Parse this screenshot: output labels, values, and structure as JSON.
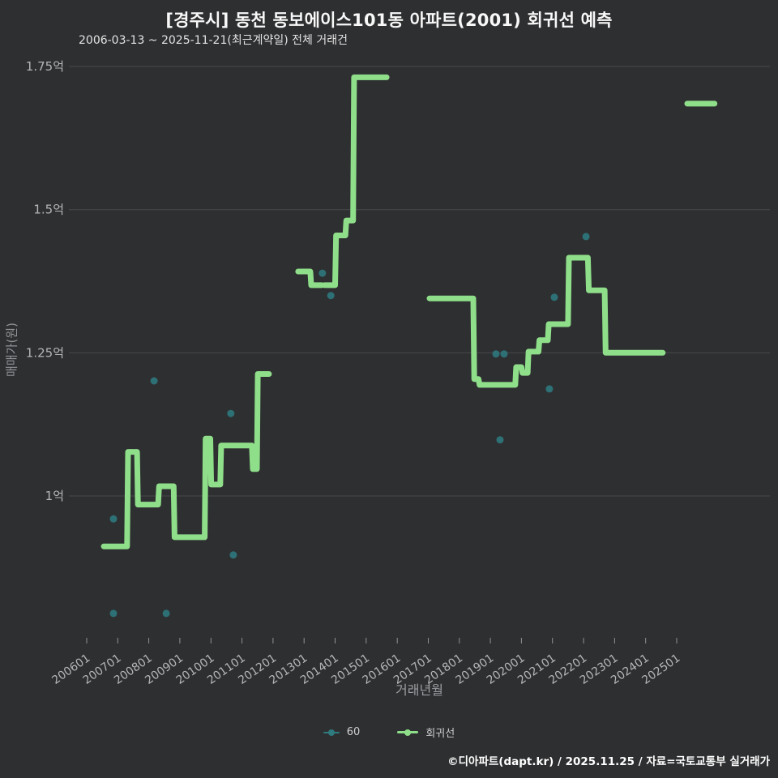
{
  "header": {
    "title": "[경주시] 동천 동보에이스101동 아파트(2001) 회귀선 예측",
    "subtitle": "2006-03-13 ~ 2025-11-21(최근계약일) 전체 거래건"
  },
  "axes": {
    "y_label": "매매가(원)",
    "x_label": "거래년월"
  },
  "legend": {
    "items": [
      {
        "label": "60",
        "color": "#2e7a7e",
        "type": "scatter"
      },
      {
        "label": "회귀선",
        "color": "#8fdf8a",
        "type": "line"
      }
    ]
  },
  "footer": {
    "credit": "©디아파트(dapt.kr) / 2025.11.25 / 자료=국토교통부 실거래가"
  },
  "chart_data": {
    "type": "line",
    "title": "[경주시] 동천 동보에이스101동 아파트(2001) 회귀선 예측",
    "xlabel": "거래년월",
    "ylabel": "매매가(원)",
    "unit": "억원",
    "grid": true,
    "grid_color": "#47494b",
    "tick_color": "#b4b6b8",
    "background": "#2e2f31",
    "x_ticks": [
      "200601",
      "200701",
      "200801",
      "200901",
      "201001",
      "201101",
      "201201",
      "201301",
      "201401",
      "201501",
      "201601",
      "201701",
      "201801",
      "201901",
      "202001",
      "202101",
      "202201",
      "202301",
      "202401",
      "202501"
    ],
    "y_ticks": [
      {
        "label": "1.75억",
        "value": 1.75
      },
      {
        "label": "1.5억",
        "value": 1.5
      },
      {
        "label": "1.25억",
        "value": 1.25
      },
      {
        "label": "1억",
        "value": 1.0
      }
    ],
    "x_range_years": [
      2006,
      2025
    ],
    "ylim": [
      0.75,
      1.78
    ],
    "series": [
      {
        "name": "60",
        "type": "scatter",
        "color": "#2e7a7e",
        "points": [
          [
            2006.86,
            0.96
          ],
          [
            2006.86,
            0.795
          ],
          [
            2008.17,
            1.201
          ],
          [
            2008.56,
            0.795
          ],
          [
            2010.64,
            1.144
          ],
          [
            2010.72,
            0.897
          ],
          [
            2013.59,
            1.389
          ],
          [
            2013.86,
            1.35
          ],
          [
            2019.18,
            1.248
          ],
          [
            2019.44,
            1.248
          ],
          [
            2019.31,
            1.098
          ],
          [
            2020.9,
            1.187
          ],
          [
            2021.06,
            1.347
          ],
          [
            2022.08,
            1.453
          ]
        ]
      },
      {
        "name": "회귀선",
        "type": "step_line",
        "color": "#8fdf8a",
        "stroke_width": 7,
        "segments": [
          [
            [
              2006.55,
              0.912
            ],
            [
              2007.3,
              0.912
            ],
            [
              2007.33,
              1.077
            ],
            [
              2007.62,
              1.077
            ],
            [
              2007.65,
              0.985
            ],
            [
              2008.3,
              0.985
            ],
            [
              2008.33,
              1.017
            ],
            [
              2008.8,
              1.017
            ],
            [
              2008.83,
              0.928
            ],
            [
              2009.8,
              0.928
            ],
            [
              2009.83,
              1.1
            ],
            [
              2009.98,
              1.1
            ],
            [
              2010.01,
              1.02
            ],
            [
              2010.3,
              1.02
            ],
            [
              2010.33,
              1.088
            ],
            [
              2011.32,
              1.088
            ],
            [
              2011.35,
              1.047
            ],
            [
              2011.48,
              1.047
            ],
            [
              2011.51,
              1.213
            ],
            [
              2011.87,
              1.213
            ]
          ],
          [
            [
              2012.81,
              1.392
            ],
            [
              2013.2,
              1.392
            ],
            [
              2013.23,
              1.368
            ],
            [
              2013.57,
              1.368
            ]
          ],
          [
            [
              2013.66,
              1.368
            ],
            [
              2014.0,
              1.368
            ],
            [
              2014.03,
              1.455
            ],
            [
              2014.33,
              1.455
            ],
            [
              2014.36,
              1.481
            ],
            [
              2014.58,
              1.481
            ],
            [
              2014.61,
              1.731
            ],
            [
              2015.66,
              1.731
            ]
          ],
          [
            [
              2017.04,
              1.345
            ],
            [
              2018.45,
              1.345
            ],
            [
              2018.48,
              1.204
            ],
            [
              2018.62,
              1.204
            ],
            [
              2018.65,
              1.194
            ],
            [
              2019.8,
              1.194
            ],
            [
              2019.83,
              1.225
            ],
            [
              2020.0,
              1.225
            ],
            [
              2020.03,
              1.215
            ],
            [
              2020.2,
              1.215
            ],
            [
              2020.23,
              1.252
            ],
            [
              2020.55,
              1.252
            ],
            [
              2020.58,
              1.272
            ],
            [
              2020.85,
              1.272
            ],
            [
              2020.88,
              1.3
            ],
            [
              2021.5,
              1.3
            ],
            [
              2021.53,
              1.416
            ],
            [
              2022.14,
              1.416
            ],
            [
              2022.17,
              1.359
            ],
            [
              2022.68,
              1.359
            ],
            [
              2022.71,
              1.25
            ],
            [
              2024.55,
              1.25
            ]
          ],
          [
            [
              2025.34,
              1.685
            ],
            [
              2026.22,
              1.685
            ]
          ]
        ]
      }
    ]
  }
}
